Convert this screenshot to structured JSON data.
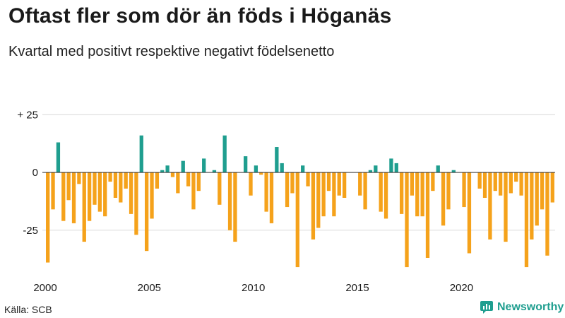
{
  "title": "Oftast fler som dör än föds i Höganäs",
  "subtitle": "Kvartal med positivt respektive negativt födelsenetto",
  "source": "Källa: SCB",
  "brand": "Newsworthy",
  "colors": {
    "positive": "#1f9e8f",
    "negative": "#f5a21b",
    "grid": "#d9d9d9",
    "zero_line": "#222222",
    "brand": "#1f9e8f"
  },
  "chart_data": {
    "type": "bar",
    "title": "Oftast fler som dör än föds i Höganäs",
    "subtitle": "Kvartal med positivt respektive negativt födelsenetto",
    "xlabel": "",
    "ylabel": "",
    "ylim": [
      -43,
      27
    ],
    "y_ticks": [
      {
        "value": 25,
        "label": "+ 25"
      },
      {
        "value": 0,
        "label": "0"
      },
      {
        "value": -25,
        "label": "-25"
      }
    ],
    "x_ticks": [
      {
        "year": 2000,
        "label": "2000"
      },
      {
        "year": 2005,
        "label": "2005"
      },
      {
        "year": 2010,
        "label": "2010"
      },
      {
        "year": 2015,
        "label": "2015"
      },
      {
        "year": 2020,
        "label": "2020"
      }
    ],
    "start_year": 2000,
    "periods_per_year": 4,
    "grid": true,
    "values": [
      -39,
      -16,
      13,
      -21,
      -12,
      -22,
      -5,
      -30,
      -21,
      -14,
      -17,
      -19,
      -4,
      -11,
      -13,
      -7,
      -18,
      -27,
      16,
      -34,
      -20,
      -7,
      1,
      3,
      -2,
      -9,
      5,
      -6,
      -16,
      -8,
      6,
      0,
      1,
      -14,
      16,
      -25,
      -30,
      0,
      7,
      -10,
      3,
      -1,
      -17,
      -22,
      11,
      4,
      -15,
      -9,
      -41,
      3,
      -6,
      -29,
      -24,
      -19,
      -8,
      -19,
      -10,
      -11,
      0,
      0,
      -10,
      -16,
      1,
      3,
      -17,
      -20,
      6,
      4,
      -18,
      -41,
      -10,
      -19,
      -19,
      -37,
      -8,
      3,
      -23,
      -16,
      1,
      0,
      -15,
      -35,
      0,
      -7,
      -11,
      -29,
      -8,
      -10,
      -30,
      -9,
      -4,
      -10,
      -41,
      -29,
      -23,
      -16,
      -36,
      -13
    ]
  }
}
